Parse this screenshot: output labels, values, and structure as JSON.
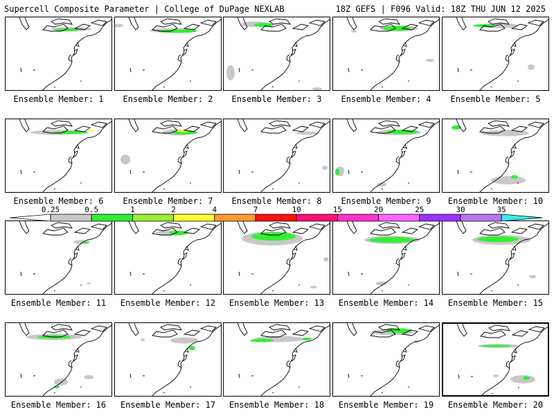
{
  "header": {
    "left": "Supercell Composite Parameter | College of DuPage NEXLAB",
    "right": "18Z GEFS | F096 Valid: 18Z THU JUN 12 2025"
  },
  "colorbar": {
    "ticks": [
      "0.25",
      "0.5",
      "1",
      "2",
      "4",
      "7",
      "10",
      "15",
      "20",
      "25",
      "30",
      "35"
    ],
    "colors": [
      "#c8c8c8",
      "#33ee33",
      "#99ee33",
      "#ffff33",
      "#ff9933",
      "#ff1111",
      "#ff1177",
      "#ff33cc",
      "#ff66ff",
      "#9933ff",
      "#bb77ee",
      "#33eeee"
    ]
  },
  "panels": [
    {
      "label": "Ensemble Member: 1"
    },
    {
      "label": "Ensemble Member: 2"
    },
    {
      "label": "Ensemble Member: 3"
    },
    {
      "label": "Ensemble Member: 4"
    },
    {
      "label": "Ensemble Member: 5"
    },
    {
      "label": "Ensemble Member: 6"
    },
    {
      "label": "Ensemble Member: 7"
    },
    {
      "label": "Ensemble Member: 8"
    },
    {
      "label": "Ensemble Member: 9"
    },
    {
      "label": "Ensemble Member: 10"
    },
    {
      "label": "Ensemble Member: 11"
    },
    {
      "label": "Ensemble Member: 12"
    },
    {
      "label": "Ensemble Member: 13"
    },
    {
      "label": "Ensemble Member: 14"
    },
    {
      "label": "Ensemble Member: 15"
    },
    {
      "label": "Ensemble Member: 16"
    },
    {
      "label": "Ensemble Member: 17"
    },
    {
      "label": "Ensemble Member: 18"
    },
    {
      "label": "Ensemble Member: 19"
    },
    {
      "label": "Ensemble Member: 20",
      "selected": true
    }
  ]
}
